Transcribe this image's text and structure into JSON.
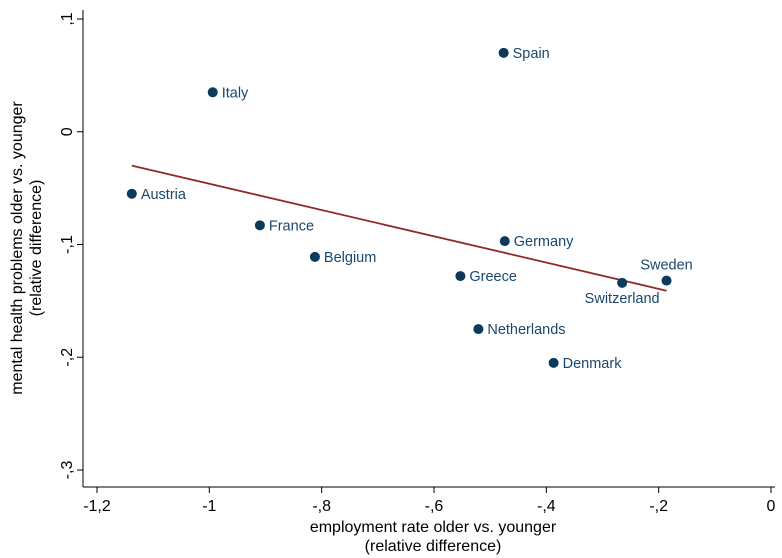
{
  "chart_data": {
    "type": "scatter",
    "xlabel": [
      "employment rate older vs. younger",
      "(relative difference)"
    ],
    "ylabel": [
      "mental health problems older vs. younger",
      "(relative difference)"
    ],
    "xlim": [
      -1.2,
      0
    ],
    "ylim": [
      -0.3,
      0.1
    ],
    "x_ticks": [
      {
        "value": -1.2,
        "label": "-1,2"
      },
      {
        "value": -1.0,
        "label": "-1"
      },
      {
        "value": -0.8,
        "label": "-,8"
      },
      {
        "value": -0.6,
        "label": "-,6"
      },
      {
        "value": -0.4,
        "label": "-,4"
      },
      {
        "value": -0.2,
        "label": "-,2"
      },
      {
        "value": 0,
        "label": "0"
      }
    ],
    "y_ticks": [
      {
        "value": -0.3,
        "label": "-,3"
      },
      {
        "value": -0.2,
        "label": "-,2"
      },
      {
        "value": -0.1,
        "label": "-,1"
      },
      {
        "value": 0,
        "label": "0"
      },
      {
        "value": 0.1,
        "label": ",1"
      }
    ],
    "grid": false,
    "point_color": "#0b3a5a",
    "label_color": "#1a476f",
    "fit_line_color": "#8f2a2a",
    "points": [
      {
        "label": "Spain",
        "x": -0.476,
        "y": 0.07,
        "label_position": "right"
      },
      {
        "label": "Italy",
        "x": -0.994,
        "y": 0.035,
        "label_position": "right"
      },
      {
        "label": "Austria",
        "x": -1.138,
        "y": -0.055,
        "label_position": "right"
      },
      {
        "label": "France",
        "x": -0.91,
        "y": -0.083,
        "label_position": "right"
      },
      {
        "label": "Belgium",
        "x": -0.812,
        "y": -0.111,
        "label_position": "right"
      },
      {
        "label": "Germany",
        "x": -0.474,
        "y": -0.097,
        "label_position": "right"
      },
      {
        "label": "Greece",
        "x": -0.553,
        "y": -0.128,
        "label_position": "right"
      },
      {
        "label": "Sweden",
        "x": -0.186,
        "y": -0.132,
        "label_position": "above"
      },
      {
        "label": "Switzerland",
        "x": -0.265,
        "y": -0.134,
        "label_position": "below"
      },
      {
        "label": "Netherlands",
        "x": -0.521,
        "y": -0.175,
        "label_position": "right"
      },
      {
        "label": "Denmark",
        "x": -0.387,
        "y": -0.205,
        "label_position": "right"
      }
    ],
    "fit_line": {
      "x": [
        -1.138,
        -0.186
      ],
      "y": [
        -0.03,
        -0.141
      ]
    }
  }
}
